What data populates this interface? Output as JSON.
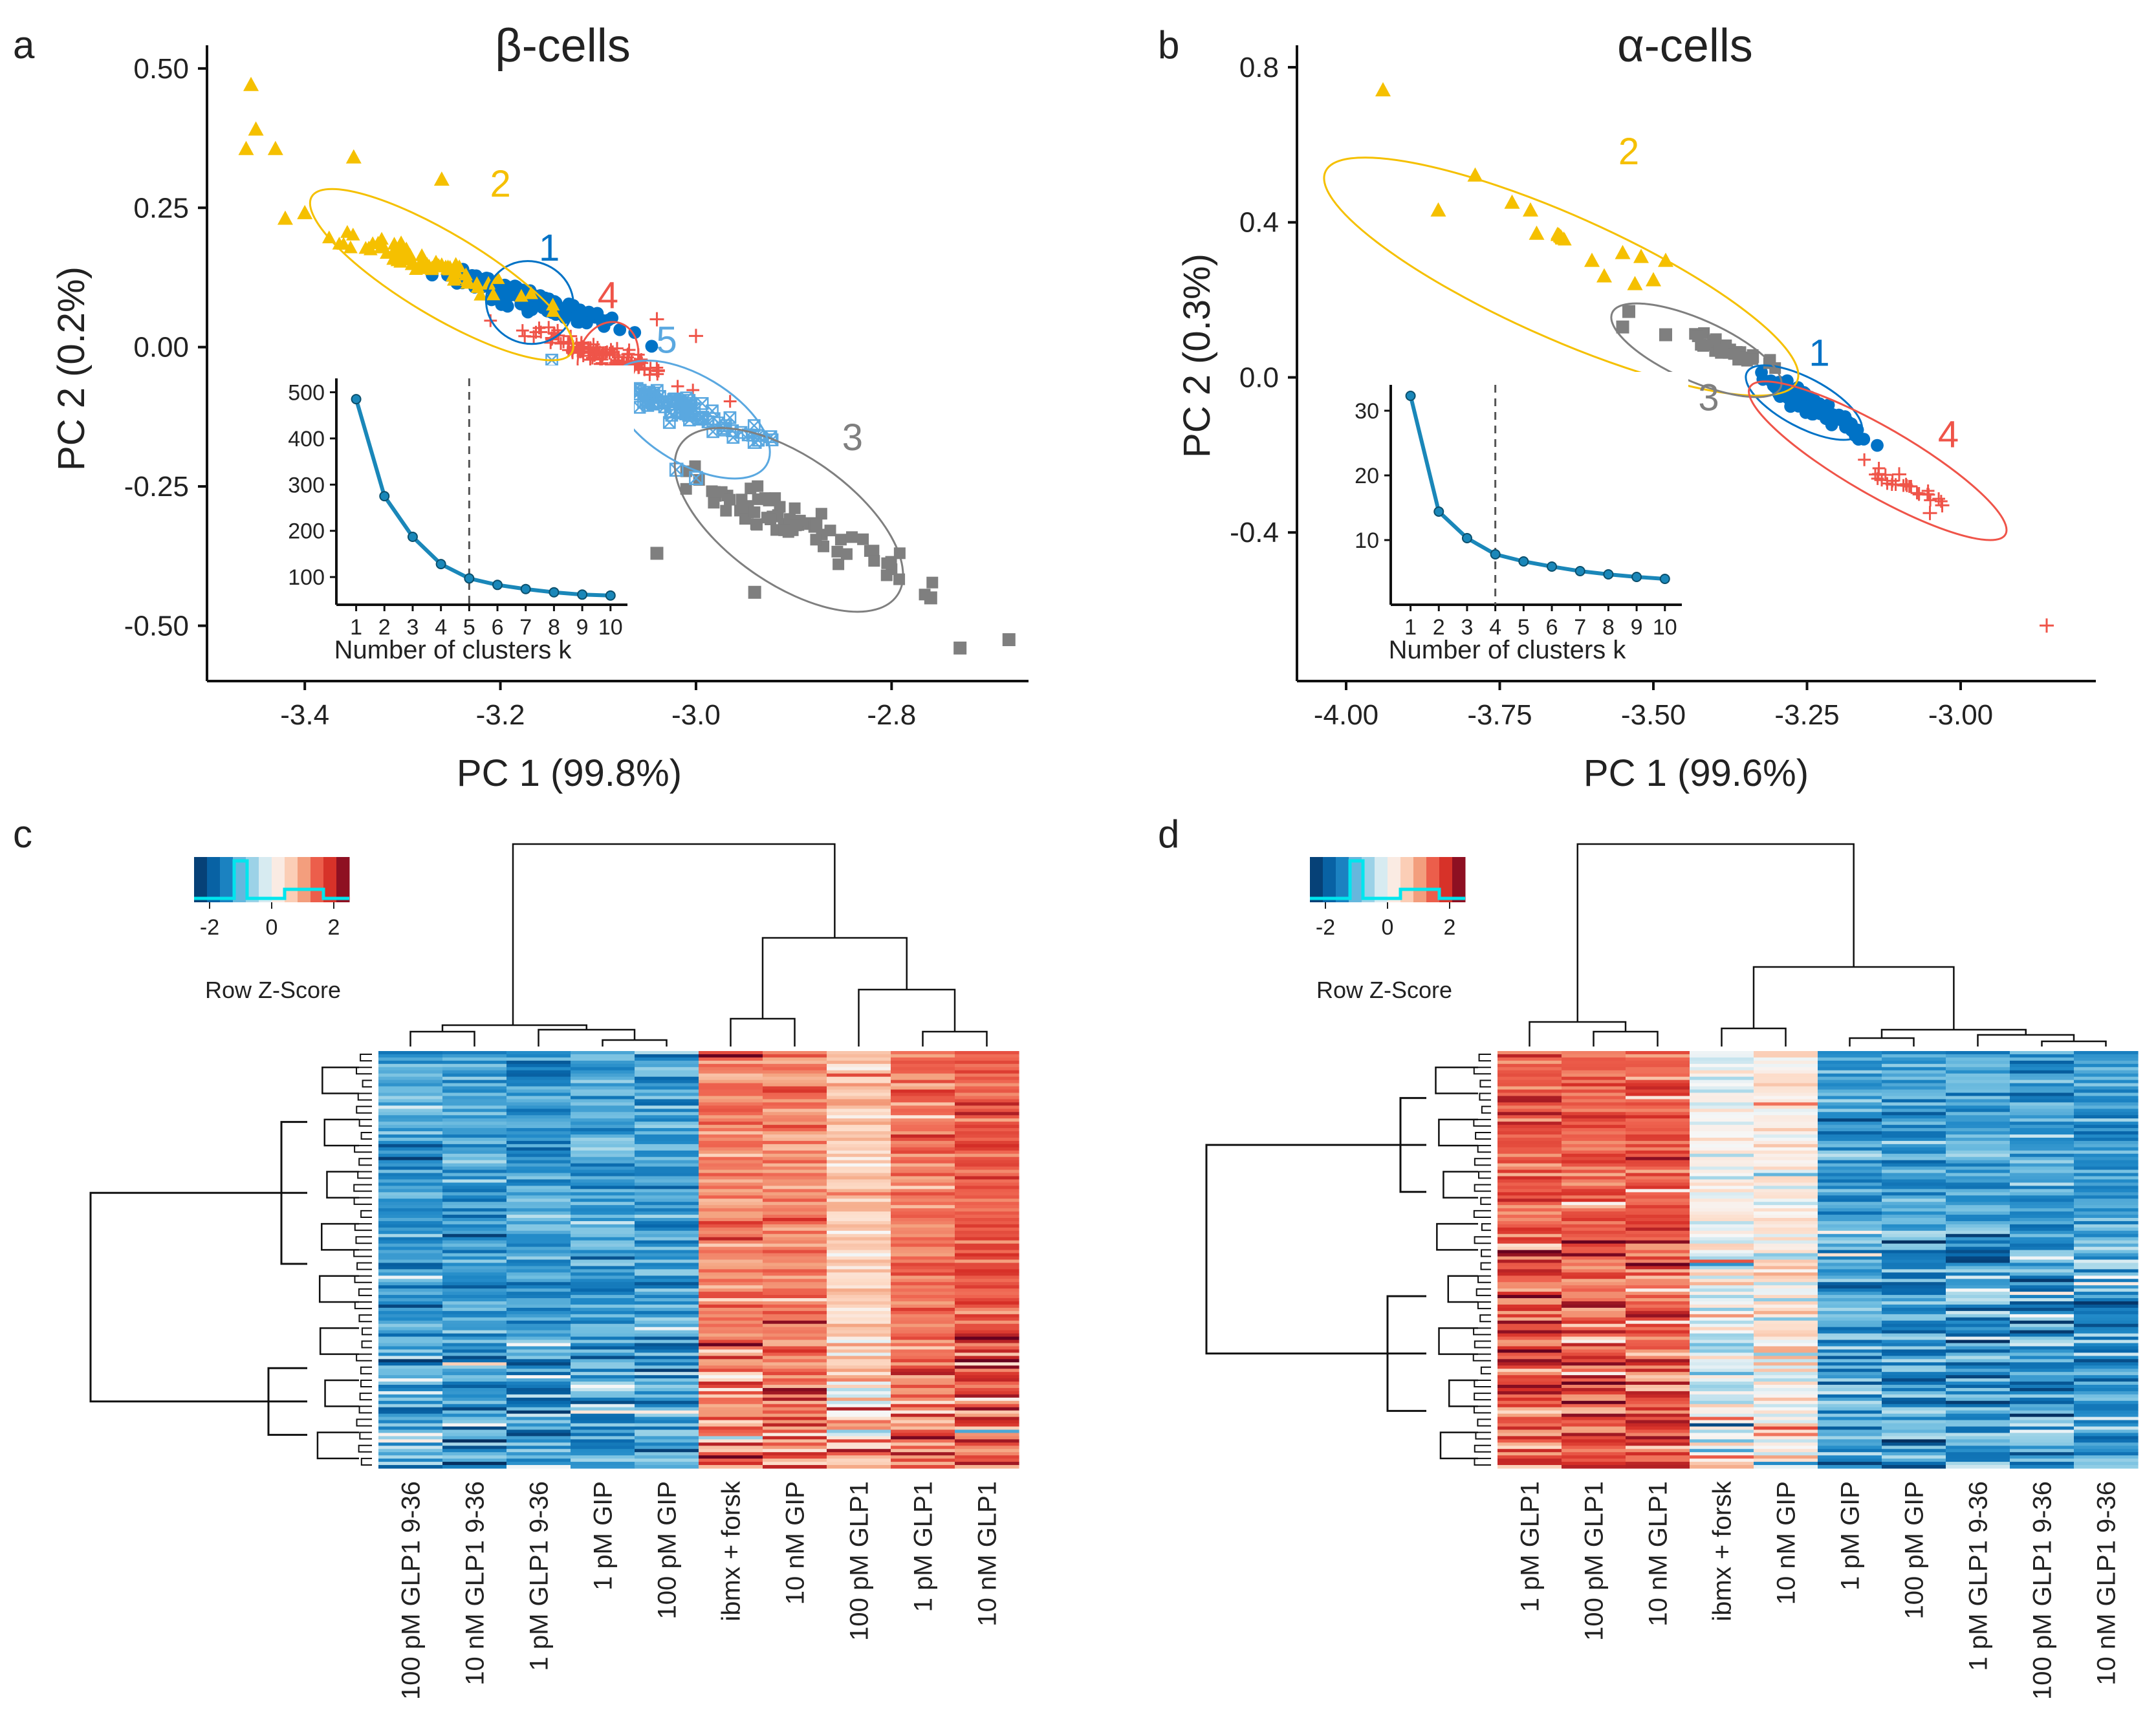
{
  "panels": {
    "a": "a",
    "b": "b",
    "c": "c",
    "d": "d"
  },
  "colors": {
    "c1": "#0072c6",
    "c2": "#f5c000",
    "c3": "#7f7f7f",
    "c4": "#ef5449",
    "c5": "#5aa8e0",
    "elbow": "#1a87b9",
    "cyan": "#00e5ee"
  },
  "icons": {
    "marker1": "circle-marker",
    "marker2": "triangle-marker",
    "marker3": "square-marker",
    "marker4": "plus-marker",
    "marker5": "boxed-x-marker"
  },
  "chart_data": [
    {
      "id": "a",
      "type": "scatter",
      "title": "β-cells",
      "xlabel": "PC 1 (99.8%)",
      "ylabel": "PC 2 (0.2%)",
      "xlim": [
        -3.5,
        -2.66
      ],
      "ylim": [
        -0.59,
        0.53
      ],
      "xticks": [
        -3.4,
        -3.2,
        -3.0,
        -2.8
      ],
      "xtick_labels": [
        "-3.4",
        "-3.2",
        "-3.0",
        "-2.8"
      ],
      "yticks": [
        0.5,
        0.25,
        0.0,
        -0.25,
        -0.5
      ],
      "ytick_labels": [
        "0.50",
        "0.25",
        "0.00",
        "-0.25",
        "-0.50"
      ],
      "clusters": [
        {
          "label": "1",
          "marker": "circle",
          "color": "#0072c6",
          "center": [
            -3.17,
            0.085
          ],
          "spread": [
            0.04,
            0.025
          ],
          "n": 150,
          "ellipse": {
            "cx": -3.17,
            "cy": 0.08,
            "rx": 0.045,
            "ry": 0.042,
            "angle": -20
          },
          "label_pos": [
            -3.15,
            0.155
          ]
        },
        {
          "label": "2",
          "marker": "triangle",
          "color": "#f5c000",
          "center": [
            -3.285,
            0.155
          ],
          "spread": [
            0.045,
            0.03
          ],
          "n": 80,
          "ellipse": {
            "cx": -3.26,
            "cy": 0.13,
            "rx": 0.155,
            "ry": 0.042,
            "angle": -31
          },
          "label_pos": [
            -3.2,
            0.27
          ]
        },
        {
          "label": "3",
          "marker": "square",
          "color": "#7f7f7f",
          "center": [
            -2.905,
            -0.315
          ],
          "spread": [
            0.06,
            0.05
          ],
          "n": 70,
          "ellipse": {
            "cx": -2.905,
            "cy": -0.31,
            "rx": 0.135,
            "ry": 0.065,
            "angle": -35
          },
          "label_pos": [
            -2.84,
            -0.185
          ]
        },
        {
          "label": "4",
          "marker": "plus",
          "color": "#ef5449",
          "center": [
            -3.09,
            -0.015
          ],
          "spread": [
            0.04,
            0.025
          ],
          "n": 110,
          "ellipse": {
            "cx": -3.09,
            "cy": -0.02,
            "rx": 0.03,
            "ry": 0.038,
            "angle": -20
          },
          "label_pos": [
            -3.09,
            0.07
          ]
        },
        {
          "label": "5",
          "marker": "boxedx",
          "color": "#5aa8e0",
          "center": [
            -3.025,
            -0.105
          ],
          "spread": [
            0.05,
            0.035
          ],
          "n": 100,
          "ellipse": {
            "cx": -3.005,
            "cy": -0.13,
            "rx": 0.09,
            "ry": 0.045,
            "angle": -31
          },
          "label_pos": [
            -3.03,
            -0.01
          ]
        }
      ],
      "extra_points": [
        {
          "marker": "triangle",
          "color": "#f5c000",
          "points": [
            [
              -3.455,
              0.47
            ],
            [
              -3.45,
              0.39
            ],
            [
              -3.46,
              0.355
            ],
            [
              -3.43,
              0.355
            ],
            [
              -3.35,
              0.34
            ],
            [
              -3.26,
              0.3
            ],
            [
              -3.4,
              0.24
            ],
            [
              -3.42,
              0.23
            ]
          ]
        },
        {
          "marker": "boxedx",
          "color": "#5aa8e0",
          "points": [
            [
              -3.2,
              -0.16
            ],
            [
              -3.02,
              -0.22
            ],
            [
              -3.0,
              -0.235
            ],
            [
              -2.94,
              -0.17
            ]
          ]
        },
        {
          "marker": "square",
          "color": "#7f7f7f",
          "points": [
            [
              -3.04,
              -0.37
            ],
            [
              -2.73,
              -0.54
            ],
            [
              -2.68,
              -0.525
            ],
            [
              -2.76,
              -0.45
            ],
            [
              -2.94,
              -0.44
            ]
          ]
        },
        {
          "marker": "plus",
          "color": "#ef5449",
          "points": [
            [
              -3.17,
              -0.06
            ],
            [
              -3.04,
              0.05
            ],
            [
              -3.0,
              0.02
            ]
          ]
        }
      ],
      "inset": {
        "type": "line",
        "xlabel": "Number of clusters k",
        "x": [
          1,
          2,
          3,
          4,
          5,
          6,
          7,
          8,
          9,
          10
        ],
        "y": [
          485,
          275,
          187,
          128,
          97,
          83,
          74,
          67,
          62,
          60
        ],
        "xlim": [
          0.3,
          10.6
        ],
        "ylim": [
          40,
          530
        ],
        "yticks": [
          100,
          200,
          300,
          400,
          500
        ],
        "ytick_labels": [
          "100",
          "200",
          "300",
          "400",
          "500"
        ],
        "xtick_labels": [
          "1",
          "2",
          "3",
          "4",
          "5",
          "6",
          "7",
          "8",
          "9",
          "10"
        ],
        "vline": 5
      }
    },
    {
      "id": "b",
      "type": "scatter",
      "title": "α-cells",
      "xlabel": "PC 1 (99.6%)",
      "ylabel": "PC 2 (0.3%)",
      "xlim": [
        -4.08,
        -2.78
      ],
      "ylim": [
        -0.77,
        0.84
      ],
      "xticks": [
        -4.0,
        -3.75,
        -3.5,
        -3.25,
        -3.0
      ],
      "xtick_labels": [
        "-4.00",
        "-3.75",
        "-3.50",
        "-3.25",
        "-3.00"
      ],
      "yticks": [
        0.8,
        0.4,
        0.0,
        -0.4
      ],
      "ytick_labels": [
        "0.8",
        "0.4",
        "0.0",
        "-0.4"
      ],
      "clusters": [
        {
          "label": "1",
          "marker": "circle",
          "color": "#0072c6",
          "center": [
            -3.245,
            -0.07
          ],
          "spread": [
            0.04,
            0.04
          ],
          "n": 70,
          "ellipse": {
            "cx": -3.255,
            "cy": -0.065,
            "rx": 0.105,
            "ry": 0.04,
            "angle": -28
          },
          "label_pos": [
            -3.23,
            0.03
          ]
        },
        {
          "label": "2",
          "marker": "triangle",
          "color": "#f5c000",
          "center": [
            -3.65,
            0.36
          ],
          "spread": [
            0.004,
            0.006
          ],
          "n": 14,
          "ellipse": {
            "cx": -3.65,
            "cy": 0.26,
            "rx": 0.42,
            "ry": 0.1,
            "angle": -24
          },
          "label_pos": [
            -3.54,
            0.55
          ]
        },
        {
          "label": "3",
          "marker": "square",
          "color": "#7f7f7f",
          "center": [
            -3.38,
            0.07
          ],
          "spread": [
            0.04,
            0.025
          ],
          "n": 35,
          "ellipse": {
            "cx": -3.43,
            "cy": 0.07,
            "rx": 0.15,
            "ry": 0.05,
            "angle": -24
          },
          "label_pos": [
            -3.41,
            -0.085
          ]
        },
        {
          "label": "4",
          "marker": "plus",
          "color": "#ef5449",
          "center": [
            -3.09,
            -0.28
          ],
          "spread": [
            0.04,
            0.03
          ],
          "n": 25,
          "ellipse": {
            "cx": -3.135,
            "cy": -0.215,
            "rx": 0.24,
            "ry": 0.055,
            "angle": -30
          },
          "label_pos": [
            -3.02,
            -0.18
          ]
        }
      ],
      "extra_points": [
        {
          "marker": "triangle",
          "color": "#f5c000",
          "points": [
            [
              -3.94,
              0.74
            ],
            [
              -3.79,
              0.52
            ],
            [
              -3.85,
              0.43
            ],
            [
              -3.73,
              0.45
            ],
            [
              -3.7,
              0.43
            ],
            [
              -3.69,
              0.37
            ],
            [
              -3.6,
              0.3
            ],
            [
              -3.55,
              0.32
            ],
            [
              -3.58,
              0.26
            ],
            [
              -3.52,
              0.31
            ],
            [
              -3.48,
              0.3
            ],
            [
              -3.53,
              0.24
            ],
            [
              -3.5,
              0.25
            ]
          ]
        },
        {
          "marker": "square",
          "color": "#7f7f7f",
          "points": [
            [
              -3.54,
              0.17
            ],
            [
              -3.55,
              0.13
            ],
            [
              -3.48,
              0.11
            ]
          ]
        },
        {
          "marker": "plus",
          "color": "#ef5449",
          "points": [
            [
              -2.86,
              -0.64
            ],
            [
              -3.05,
              -0.35
            ],
            [
              -3.03,
              -0.33
            ],
            [
              -3.1,
              -0.25
            ]
          ]
        }
      ],
      "inset": {
        "type": "line",
        "xlabel": "Number of clusters k",
        "x": [
          1,
          2,
          3,
          4,
          5,
          6,
          7,
          8,
          9,
          10
        ],
        "y": [
          32.3,
          14.4,
          10.3,
          7.8,
          6.7,
          5.9,
          5.2,
          4.7,
          4.3,
          4.0
        ],
        "xlim": [
          0.3,
          10.6
        ],
        "ylim": [
          0,
          34
        ],
        "yticks": [
          10,
          20,
          30
        ],
        "ytick_labels": [
          "10",
          "20",
          "30"
        ],
        "xtick_labels": [
          "1",
          "2",
          "3",
          "4",
          "5",
          "6",
          "7",
          "8",
          "9",
          "10"
        ],
        "vline": 4
      }
    },
    {
      "id": "c",
      "type": "heatmap",
      "columns": [
        "100 pM GLP1 9-36",
        "10 nM GLP1 9-36",
        "1 pM GLP1 9-36",
        "1 pM GIP",
        "100 pM GIP",
        "ibmx + forsk",
        "10 nM GIP",
        "100 pM GLP1",
        "1 pM GLP1",
        "10 nM GLP1"
      ],
      "n_rows": 130,
      "column_profile": [
        -1.2,
        -1.2,
        -1.2,
        -1.2,
        -1.2,
        1.2,
        1.2,
        0.6,
        1.35,
        1.5
      ],
      "color_key": {
        "title": "Row Z-Score",
        "ticks": [
          "-2",
          "0",
          "2"
        ],
        "min": -2.5,
        "max": 2.5
      }
    },
    {
      "id": "d",
      "type": "heatmap",
      "columns": [
        "1 pM GLP1",
        "100 pM GLP1",
        "10 nM GLP1",
        "ibmx + forsk",
        "10 nM GIP",
        "1 pM GIP",
        "100 pM GIP",
        "1 pM GLP1 9-36",
        "100 pM GLP1 9-36",
        "10 nM GLP1 9-36"
      ],
      "n_rows": 130,
      "column_profile": [
        1.5,
        1.45,
        1.5,
        0.0,
        0.2,
        -1.2,
        -1.2,
        -1.2,
        -1.25,
        -1.25
      ],
      "color_key": {
        "title": "Row Z-Score",
        "ticks": [
          "-2",
          "0",
          "2"
        ],
        "min": -2.5,
        "max": 2.5
      }
    }
  ]
}
